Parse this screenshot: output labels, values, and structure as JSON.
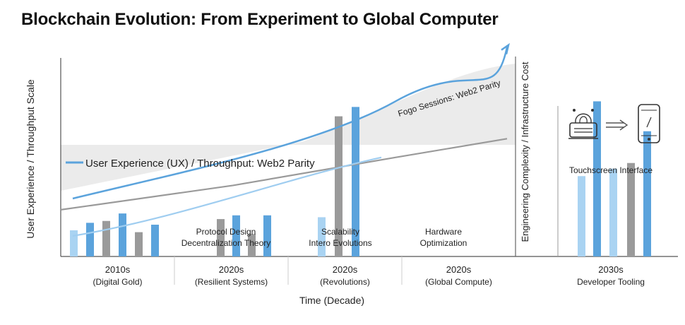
{
  "title": "Blockchain Evolution: From Experiment to Global Computer",
  "chart_data": [
    {
      "type": "bar",
      "ylabel": "User Experience / Throughput Scale",
      "ylabel_right": "Engineering Complexity / Infrastructure Cost",
      "xlabel": "Time (Decade)",
      "groups": [
        {
          "label": "2010s",
          "sublabel": "(Digital Gold)",
          "note": ""
        },
        {
          "label": "2020s",
          "sublabel": "(Resilient Systems)",
          "note": "Protocol Design\nDecentralization Theory"
        },
        {
          "label": "2020s",
          "sublabel": "(Revolutions)",
          "note": "Scalability\nIntero Evolutions"
        },
        {
          "label": "2020s",
          "sublabel": "(Global Compute)",
          "note": "Hardware\nOptimization"
        }
      ],
      "bars": [
        {
          "group": 0,
          "color": "light",
          "value": 14
        },
        {
          "group": 0,
          "color": "mid",
          "value": 18
        },
        {
          "group": 0,
          "color": "gray",
          "value": 19
        },
        {
          "group": 0,
          "color": "mid",
          "value": 23
        },
        {
          "group": 0,
          "color": "gray",
          "value": 13
        },
        {
          "group": 0,
          "color": "mid",
          "value": 17
        },
        {
          "group": 1,
          "color": "gray",
          "value": 20
        },
        {
          "group": 1,
          "color": "mid",
          "value": 22
        },
        {
          "group": 1,
          "color": "gray",
          "value": 12
        },
        {
          "group": 1,
          "color": "mid",
          "value": 22
        },
        {
          "group": 2,
          "color": "light",
          "value": 21
        },
        {
          "group": 2,
          "color": "gray",
          "value": 75
        },
        {
          "group": 2,
          "color": "mid",
          "value": 80
        }
      ],
      "lines": [
        {
          "name": "User Experience (UX) / Throughput: Web2 Parity",
          "style": "blue",
          "values": [
            31,
            53,
            83,
            112
          ]
        },
        {
          "name": "",
          "style": "gray",
          "values": [
            25,
            38,
            53,
            63
          ]
        },
        {
          "name": "",
          "style": "lightblue",
          "values": [
            11,
            24,
            45,
            53
          ]
        }
      ],
      "legend_label": "User Experience (UX) / Throughput: Web2 Parity",
      "annotation": "Fogo Sessions: Web2 Parity",
      "ylim": [
        0,
        110
      ]
    },
    {
      "type": "bar",
      "group_label": "2030s",
      "group_sublabel": "Developer Tooling",
      "panel_label": "Touchscreen Interface",
      "values": [
        43,
        83,
        47,
        50,
        67
      ],
      "colors": [
        "light",
        "mid",
        "light",
        "gray",
        "mid"
      ],
      "ylim": [
        0,
        110
      ]
    }
  ],
  "colors": {
    "light": "#a9d3f2",
    "mid": "#5ba3dc",
    "gray": "#9a9a9a",
    "line_blue": "#5ba3dc",
    "line_light": "#9fcdf0",
    "line_gray": "#9a9a9a",
    "band": "#e8e8e8"
  },
  "icons": [
    "server-robot-icon",
    "arrow-right-icon",
    "smartphone-icon"
  ]
}
